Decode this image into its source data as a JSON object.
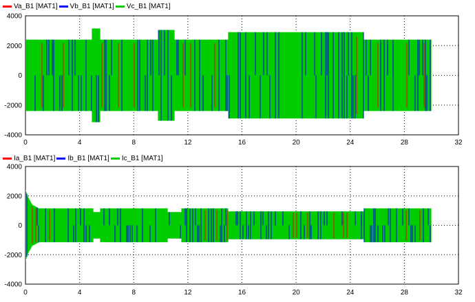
{
  "chart_data": [
    {
      "type": "line",
      "title": "",
      "xlabel": "",
      "ylabel": "",
      "xlim": [
        0,
        32
      ],
      "ylim": [
        -4000,
        4000
      ],
      "x_ticks": [
        "0",
        "4",
        "8",
        "12",
        "16",
        "20",
        "24",
        "28",
        "32"
      ],
      "y_ticks": [
        "4000",
        "2000",
        "0",
        "-2000",
        "-4000"
      ],
      "grid": true,
      "legend_position": "top-left",
      "series": [
        {
          "name": "Va_B1 [MAT1]",
          "color": "#ff0000"
        },
        {
          "name": "Vb_B1 [MAT1]",
          "color": "#0000ff"
        },
        {
          "name": "Vc_B1 [MAT1]",
          "color": "#00cc00"
        }
      ],
      "envelope": {
        "t": [
          0,
          4.9,
          4.9,
          5.5,
          5.5,
          9.8,
          9.8,
          11.0,
          11.0,
          15.0,
          15.0,
          25.0,
          25.0,
          30.0
        ],
        "amplitude": [
          2400,
          2400,
          3150,
          3150,
          2400,
          2400,
          3050,
          3050,
          2400,
          2400,
          2900,
          2900,
          2400,
          2400
        ]
      }
    },
    {
      "type": "line",
      "title": "",
      "xlabel": "",
      "ylabel": "",
      "xlim": [
        0,
        32
      ],
      "ylim": [
        -4000,
        4000
      ],
      "x_ticks": [
        "0",
        "4",
        "8",
        "12",
        "16",
        "20",
        "24",
        "28",
        "32"
      ],
      "y_ticks": [
        "4000",
        "2000",
        "0",
        "-2000",
        "-4000"
      ],
      "grid": true,
      "legend_position": "top-left",
      "series": [
        {
          "name": "Ia_B1 [MAT1]",
          "color": "#ff0000"
        },
        {
          "name": "Ib_B1 [MAT1]",
          "color": "#0000ff"
        },
        {
          "name": "Ic_B1 [MAT1]",
          "color": "#00cc00"
        }
      ],
      "envelope": {
        "t": [
          0,
          0.2,
          0.5,
          1.0,
          1.5,
          5.0,
          5.0,
          5.5,
          5.5,
          10.5,
          10.5,
          11.5,
          11.5,
          15.0,
          15.0,
          25.0,
          25.0,
          30.0
        ],
        "amplitude": [
          2400,
          1900,
          1400,
          1150,
          1150,
          1150,
          900,
          900,
          1150,
          1150,
          900,
          900,
          1150,
          1150,
          950,
          950,
          1150,
          1150
        ]
      }
    }
  ]
}
